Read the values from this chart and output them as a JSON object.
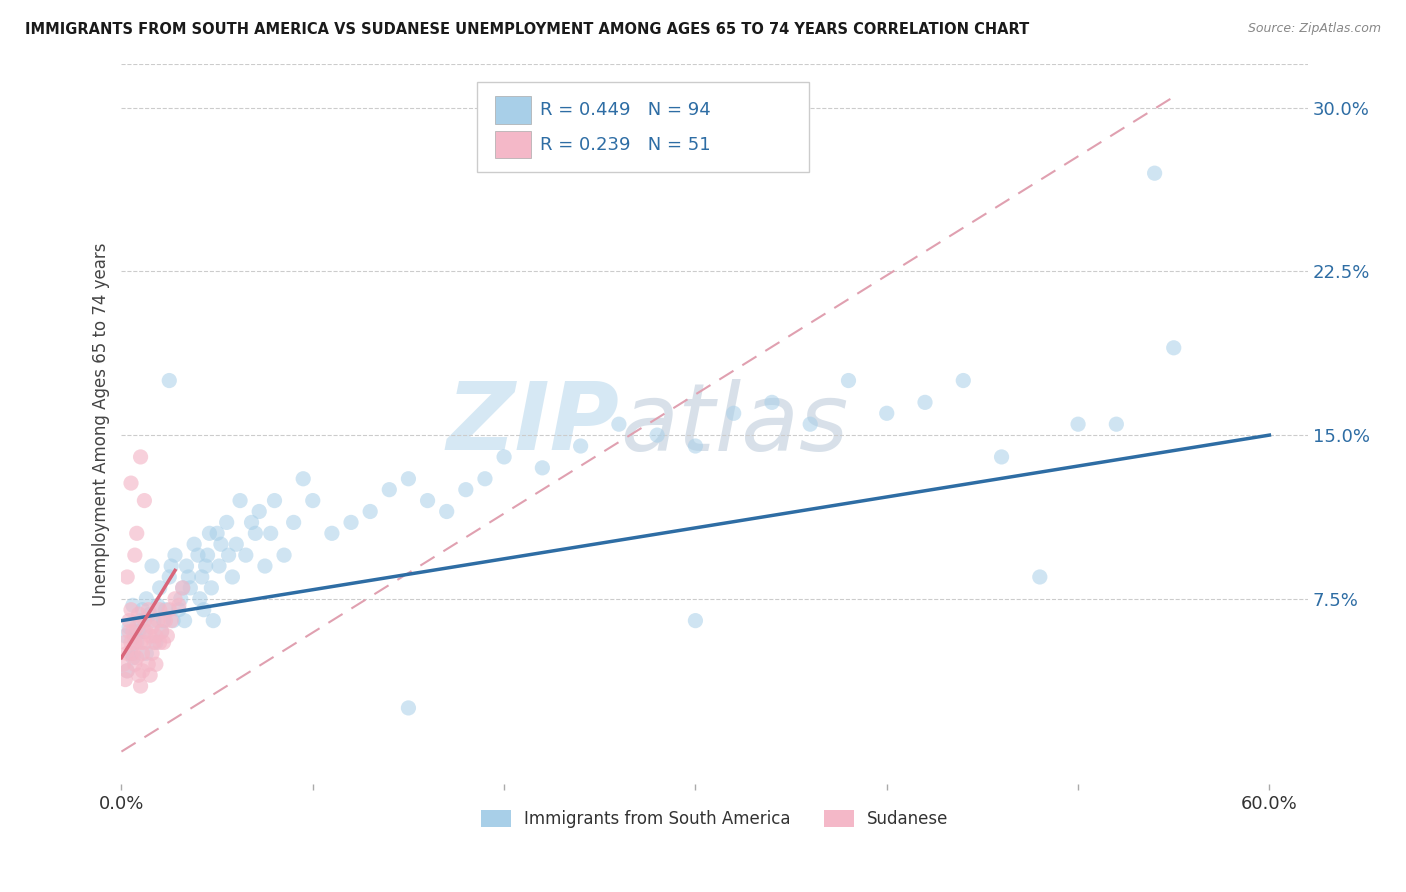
{
  "title": "IMMIGRANTS FROM SOUTH AMERICA VS SUDANESE UNEMPLOYMENT AMONG AGES 65 TO 74 YEARS CORRELATION CHART",
  "source": "Source: ZipAtlas.com",
  "ylabel": "Unemployment Among Ages 65 to 74 years",
  "xlim": [
    0.0,
    0.62
  ],
  "ylim": [
    -0.01,
    0.32
  ],
  "xtick_labels": [
    "0.0%",
    "60.0%"
  ],
  "xtick_positions": [
    0.0,
    0.6
  ],
  "ytick_labels": [
    "7.5%",
    "15.0%",
    "22.5%",
    "30.0%"
  ],
  "ytick_positions": [
    0.075,
    0.15,
    0.225,
    0.3
  ],
  "watermark_zip": "ZIP",
  "watermark_atlas": "atlas",
  "legend_items": [
    {
      "color": "#a8cfe8",
      "label": "Immigrants from South America",
      "R": 0.449,
      "N": 94
    },
    {
      "color": "#f4b8c8",
      "label": "Sudanese",
      "R": 0.239,
      "N": 51
    }
  ],
  "blue_scatter": [
    [
      0.002,
      0.058
    ],
    [
      0.003,
      0.042
    ],
    [
      0.004,
      0.062
    ],
    [
      0.005,
      0.05
    ],
    [
      0.006,
      0.048
    ],
    [
      0.006,
      0.072
    ],
    [
      0.007,
      0.058
    ],
    [
      0.008,
      0.055
    ],
    [
      0.009,
      0.06
    ],
    [
      0.01,
      0.065
    ],
    [
      0.011,
      0.07
    ],
    [
      0.012,
      0.06
    ],
    [
      0.013,
      0.075
    ],
    [
      0.013,
      0.05
    ],
    [
      0.015,
      0.068
    ],
    [
      0.016,
      0.09
    ],
    [
      0.017,
      0.065
    ],
    [
      0.018,
      0.055
    ],
    [
      0.019,
      0.072
    ],
    [
      0.02,
      0.08
    ],
    [
      0.021,
      0.06
    ],
    [
      0.022,
      0.065
    ],
    [
      0.023,
      0.07
    ],
    [
      0.025,
      0.085
    ],
    [
      0.026,
      0.09
    ],
    [
      0.027,
      0.065
    ],
    [
      0.028,
      0.095
    ],
    [
      0.03,
      0.07
    ],
    [
      0.031,
      0.075
    ],
    [
      0.032,
      0.08
    ],
    [
      0.033,
      0.065
    ],
    [
      0.034,
      0.09
    ],
    [
      0.035,
      0.085
    ],
    [
      0.036,
      0.08
    ],
    [
      0.038,
      0.1
    ],
    [
      0.04,
      0.095
    ],
    [
      0.041,
      0.075
    ],
    [
      0.042,
      0.085
    ],
    [
      0.043,
      0.07
    ],
    [
      0.044,
      0.09
    ],
    [
      0.045,
      0.095
    ],
    [
      0.046,
      0.105
    ],
    [
      0.047,
      0.08
    ],
    [
      0.048,
      0.065
    ],
    [
      0.05,
      0.105
    ],
    [
      0.051,
      0.09
    ],
    [
      0.052,
      0.1
    ],
    [
      0.055,
      0.11
    ],
    [
      0.056,
      0.095
    ],
    [
      0.058,
      0.085
    ],
    [
      0.06,
      0.1
    ],
    [
      0.062,
      0.12
    ],
    [
      0.065,
      0.095
    ],
    [
      0.068,
      0.11
    ],
    [
      0.07,
      0.105
    ],
    [
      0.072,
      0.115
    ],
    [
      0.075,
      0.09
    ],
    [
      0.078,
      0.105
    ],
    [
      0.08,
      0.12
    ],
    [
      0.085,
      0.095
    ],
    [
      0.09,
      0.11
    ],
    [
      0.095,
      0.13
    ],
    [
      0.1,
      0.12
    ],
    [
      0.11,
      0.105
    ],
    [
      0.12,
      0.11
    ],
    [
      0.13,
      0.115
    ],
    [
      0.14,
      0.125
    ],
    [
      0.15,
      0.13
    ],
    [
      0.16,
      0.12
    ],
    [
      0.17,
      0.115
    ],
    [
      0.18,
      0.125
    ],
    [
      0.19,
      0.13
    ],
    [
      0.2,
      0.14
    ],
    [
      0.22,
      0.135
    ],
    [
      0.24,
      0.145
    ],
    [
      0.26,
      0.155
    ],
    [
      0.28,
      0.15
    ],
    [
      0.3,
      0.145
    ],
    [
      0.32,
      0.16
    ],
    [
      0.34,
      0.165
    ],
    [
      0.36,
      0.155
    ],
    [
      0.38,
      0.175
    ],
    [
      0.4,
      0.16
    ],
    [
      0.42,
      0.165
    ],
    [
      0.44,
      0.175
    ],
    [
      0.46,
      0.14
    ],
    [
      0.48,
      0.085
    ],
    [
      0.5,
      0.155
    ],
    [
      0.52,
      0.155
    ],
    [
      0.55,
      0.19
    ],
    [
      0.025,
      0.175
    ],
    [
      0.54,
      0.27
    ],
    [
      0.3,
      0.065
    ],
    [
      0.15,
      0.025
    ]
  ],
  "pink_scatter": [
    [
      0.001,
      0.045
    ],
    [
      0.002,
      0.038
    ],
    [
      0.002,
      0.055
    ],
    [
      0.003,
      0.042
    ],
    [
      0.003,
      0.05
    ],
    [
      0.004,
      0.06
    ],
    [
      0.004,
      0.065
    ],
    [
      0.005,
      0.055
    ],
    [
      0.005,
      0.07
    ],
    [
      0.006,
      0.05
    ],
    [
      0.006,
      0.06
    ],
    [
      0.007,
      0.045
    ],
    [
      0.007,
      0.055
    ],
    [
      0.008,
      0.048
    ],
    [
      0.008,
      0.062
    ],
    [
      0.009,
      0.068
    ],
    [
      0.009,
      0.04
    ],
    [
      0.01,
      0.055
    ],
    [
      0.01,
      0.035
    ],
    [
      0.011,
      0.05
    ],
    [
      0.011,
      0.042
    ],
    [
      0.012,
      0.065
    ],
    [
      0.012,
      0.055
    ],
    [
      0.013,
      0.06
    ],
    [
      0.014,
      0.07
    ],
    [
      0.014,
      0.045
    ],
    [
      0.015,
      0.058
    ],
    [
      0.015,
      0.04
    ],
    [
      0.016,
      0.062
    ],
    [
      0.016,
      0.05
    ],
    [
      0.017,
      0.055
    ],
    [
      0.018,
      0.045
    ],
    [
      0.018,
      0.058
    ],
    [
      0.019,
      0.065
    ],
    [
      0.02,
      0.055
    ],
    [
      0.02,
      0.07
    ],
    [
      0.021,
      0.06
    ],
    [
      0.022,
      0.055
    ],
    [
      0.023,
      0.065
    ],
    [
      0.024,
      0.058
    ],
    [
      0.025,
      0.07
    ],
    [
      0.026,
      0.065
    ],
    [
      0.028,
      0.075
    ],
    [
      0.03,
      0.072
    ],
    [
      0.032,
      0.08
    ],
    [
      0.01,
      0.14
    ],
    [
      0.012,
      0.12
    ],
    [
      0.008,
      0.105
    ],
    [
      0.005,
      0.128
    ],
    [
      0.007,
      0.095
    ],
    [
      0.003,
      0.085
    ]
  ],
  "blue_line_x": [
    0.0,
    0.6
  ],
  "blue_line_y": [
    0.065,
    0.15
  ],
  "pink_line_x": [
    0.0,
    0.028
  ],
  "pink_line_y": [
    0.048,
    0.088
  ],
  "dashed_line_x": [
    0.0,
    0.55
  ],
  "dashed_line_y": [
    0.005,
    0.305
  ],
  "blue_color": "#a8cfe8",
  "pink_color": "#f4b8c8",
  "blue_line_color": "#2e6da4",
  "pink_line_color": "#d9657a",
  "dashed_color": "#e0a0b0",
  "tick_color": "#2e6da4",
  "ylabel_color": "#444444"
}
